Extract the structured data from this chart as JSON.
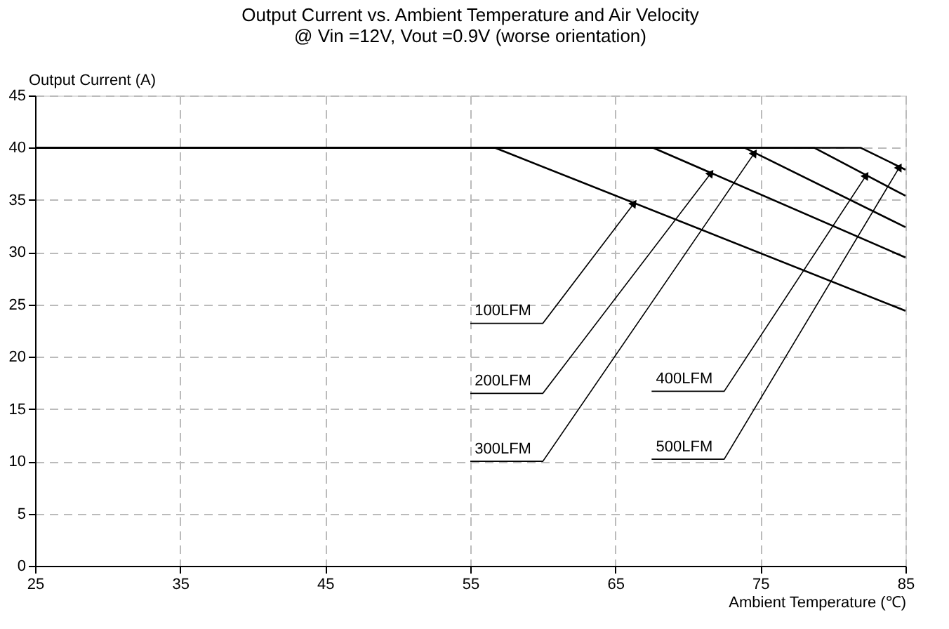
{
  "chart_data": {
    "type": "line",
    "title": "Output Current vs. Ambient Temperature and Air Velocity",
    "subtitle": "@ Vin =12V, Vout =0.9V (worse orientation)",
    "xlabel": "Ambient Temperature (℃)",
    "ylabel": "Output Current (A)",
    "series": [
      {
        "name": "100LFM",
        "color": "#000000",
        "x": [
          25,
          56.7,
          85
        ],
        "values": [
          40,
          40,
          24.4
        ]
      },
      {
        "name": "200LFM",
        "color": "#000000",
        "x": [
          25,
          67.6,
          85
        ],
        "values": [
          40,
          40,
          29.5
        ]
      },
      {
        "name": "300LFM",
        "color": "#000000",
        "x": [
          25,
          73.9,
          85
        ],
        "values": [
          40,
          40,
          32.4
        ]
      },
      {
        "name": "400LFM",
        "color": "#000000",
        "x": [
          25,
          78.7,
          85
        ],
        "values": [
          40,
          40,
          35.4
        ]
      },
      {
        "name": "500LFM",
        "color": "#000000",
        "x": [
          25,
          81.9,
          85
        ],
        "values": [
          40,
          40,
          37.9
        ]
      }
    ],
    "xlim": [
      25,
      85
    ],
    "xticks": [
      25,
      35,
      45,
      55,
      65,
      75,
      85
    ],
    "ylim": [
      0,
      45
    ],
    "yticks": [
      0,
      5,
      10,
      15,
      20,
      25,
      30,
      35,
      40,
      45
    ],
    "grid": true,
    "marker": "none",
    "line_style": "solid"
  }
}
